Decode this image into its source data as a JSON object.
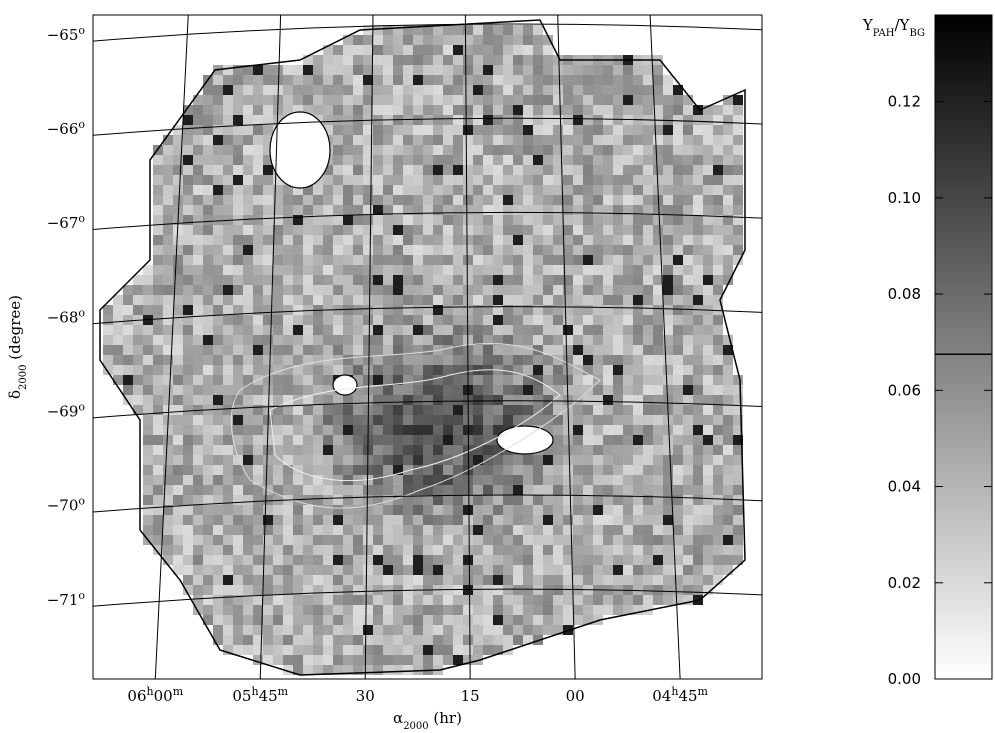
{
  "chart_data": {
    "type": "map",
    "x_label": [
      {
        "text": "α"
      },
      {
        "text": "2000",
        "sub": true
      },
      {
        "text": " (hr)"
      }
    ],
    "y_label": [
      {
        "text": "δ"
      },
      {
        "text": "2000",
        "sub": true
      },
      {
        "text": " (degree)"
      }
    ],
    "xlim": [
      368.9,
      273.3
    ],
    "ylim": [
      -71.84,
      -64.79
    ],
    "xticks": [
      {
        "value": 360,
        "parts": [
          {
            "text": "06"
          },
          {
            "text": "h",
            "sup": true
          },
          {
            "text": "00"
          },
          {
            "text": "m",
            "sup": true
          }
        ]
      },
      {
        "value": 345,
        "parts": [
          {
            "text": "05"
          },
          {
            "text": "h",
            "sup": true
          },
          {
            "text": "45"
          },
          {
            "text": "m",
            "sup": true
          }
        ]
      },
      {
        "value": 330,
        "parts": [
          {
            "text": "30"
          }
        ]
      },
      {
        "value": 315,
        "parts": [
          {
            "text": "15"
          }
        ]
      },
      {
        "value": 300,
        "parts": [
          {
            "text": "00"
          }
        ]
      },
      {
        "value": 285,
        "parts": [
          {
            "text": "04"
          },
          {
            "text": "h",
            "sup": true
          },
          {
            "text": "45"
          },
          {
            "text": "m",
            "sup": true
          }
        ]
      }
    ],
    "yticks": [
      {
        "value": -65,
        "parts": [
          {
            "text": "−65"
          },
          {
            "text": "o",
            "sup": true
          }
        ]
      },
      {
        "value": -66,
        "parts": [
          {
            "text": "−66"
          },
          {
            "text": "o",
            "sup": true
          }
        ]
      },
      {
        "value": -67,
        "parts": [
          {
            "text": "−67"
          },
          {
            "text": "o",
            "sup": true
          }
        ]
      },
      {
        "value": -68,
        "parts": [
          {
            "text": "−68"
          },
          {
            "text": "o",
            "sup": true
          }
        ]
      },
      {
        "value": -69,
        "parts": [
          {
            "text": "−69"
          },
          {
            "text": "o",
            "sup": true
          }
        ]
      },
      {
        "value": -70,
        "parts": [
          {
            "text": "−70"
          },
          {
            "text": "o",
            "sup": true
          }
        ]
      },
      {
        "value": -71,
        "parts": [
          {
            "text": "−71"
          },
          {
            "text": "o",
            "sup": true
          }
        ]
      }
    ],
    "colorbar": {
      "label": [
        {
          "text": "Y"
        },
        {
          "text": "PAH",
          "sub": true
        },
        {
          "text": "/Y"
        },
        {
          "text": "BG",
          "sub": true
        }
      ],
      "lim": [
        0,
        0.138
      ],
      "ticks": [
        {
          "value": 0,
          "label": "0.00"
        },
        0.02,
        0.04,
        0.06,
        0.08,
        {
          "value": 0.1,
          "label": "0.10"
        },
        0.12
      ],
      "marker": 0.0675
    }
  }
}
